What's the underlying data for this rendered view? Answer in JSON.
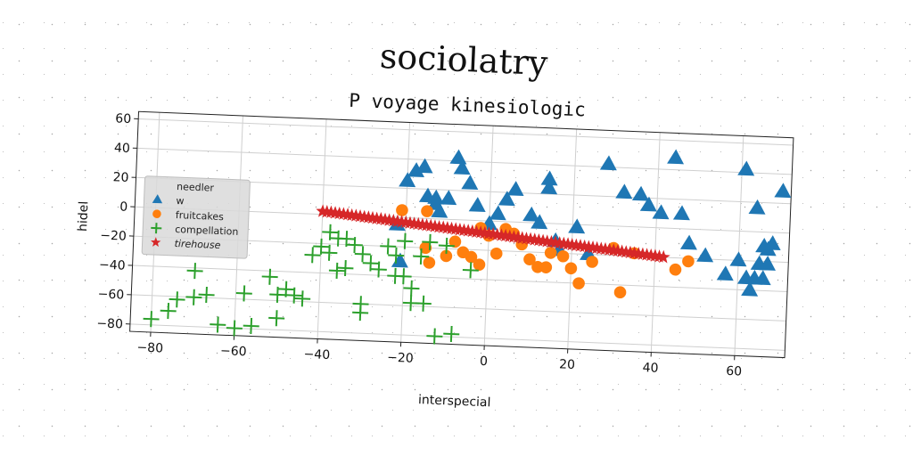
{
  "title": "sociolatry",
  "chart_data": {
    "type": "scatter",
    "title": "P voyage kinesiologic",
    "xlabel": "interspecial",
    "ylabel": "hidel",
    "xlim": [
      -85,
      72
    ],
    "ylim": [
      -85,
      65
    ],
    "xticks": [
      -80,
      -60,
      -40,
      -20,
      0,
      20,
      40,
      60
    ],
    "yticks": [
      60,
      40,
      20,
      0,
      -20,
      -40,
      -60,
      -80
    ],
    "grid": true,
    "legend": {
      "title": "needler",
      "position": "center-left"
    },
    "series": [
      {
        "name": "w",
        "marker": "triangle",
        "color": "#1f77b4",
        "points": [
          [
            -20,
            25
          ],
          [
            -18,
            32
          ],
          [
            -16,
            35
          ],
          [
            -15,
            15
          ],
          [
            -13,
            14
          ],
          [
            -13,
            10
          ],
          [
            -12,
            5
          ],
          [
            -10,
            14
          ],
          [
            -8,
            42
          ],
          [
            -7,
            35
          ],
          [
            -5,
            25
          ],
          [
            -3,
            10
          ],
          [
            0,
            -2
          ],
          [
            2,
            5
          ],
          [
            4,
            15
          ],
          [
            6,
            22
          ],
          [
            10,
            5
          ],
          [
            12,
            0
          ],
          [
            14,
            24
          ],
          [
            14,
            30
          ],
          [
            16,
            -12
          ],
          [
            17,
            -18
          ],
          [
            21,
            -2
          ],
          [
            24,
            -20
          ],
          [
            28,
            42
          ],
          [
            32,
            23
          ],
          [
            36,
            22
          ],
          [
            38,
            15
          ],
          [
            41,
            10
          ],
          [
            44,
            48
          ],
          [
            46,
            10
          ],
          [
            48,
            -10
          ],
          [
            52,
            -18
          ],
          [
            57,
            -30
          ],
          [
            60,
            -20
          ],
          [
            61,
            42
          ],
          [
            62,
            -32
          ],
          [
            63,
            -40
          ],
          [
            64,
            -32
          ],
          [
            64,
            16
          ],
          [
            65,
            -22
          ],
          [
            66,
            -10
          ],
          [
            66,
            -32
          ],
          [
            67,
            -22
          ],
          [
            67,
            -12
          ],
          [
            68,
            -8
          ],
          [
            70,
            28
          ],
          [
            -21,
            -30
          ],
          [
            -22,
            -5
          ]
        ]
      },
      {
        "name": "fruitcakes",
        "marker": "circle",
        "color": "#ff7f0e",
        "points": [
          [
            -21,
            5
          ],
          [
            -15,
            5
          ],
          [
            -15,
            -20
          ],
          [
            -14,
            -30
          ],
          [
            -10,
            -25
          ],
          [
            -8,
            -15
          ],
          [
            -6,
            -22
          ],
          [
            -4,
            -25
          ],
          [
            -2,
            -30
          ],
          [
            0,
            -10
          ],
          [
            2,
            -22
          ],
          [
            4,
            -5
          ],
          [
            6,
            -8
          ],
          [
            8,
            -15
          ],
          [
            10,
            -25
          ],
          [
            12,
            -30
          ],
          [
            14,
            -30
          ],
          [
            15,
            -20
          ],
          [
            18,
            -22
          ],
          [
            20,
            -30
          ],
          [
            22,
            -40
          ],
          [
            25,
            -25
          ],
          [
            30,
            -15
          ],
          [
            32,
            -45
          ],
          [
            35,
            -18
          ],
          [
            45,
            -28
          ],
          [
            48,
            -22
          ],
          [
            -2,
            -5
          ]
        ]
      },
      {
        "name": "compellation",
        "marker": "plus",
        "color": "#2ca02c",
        "points": [
          [
            -80,
            -76
          ],
          [
            -76,
            -70
          ],
          [
            -74,
            -62
          ],
          [
            -70,
            -42
          ],
          [
            -70,
            -60
          ],
          [
            -67,
            -58
          ],
          [
            -64,
            -78
          ],
          [
            -60,
            -80
          ],
          [
            -58,
            -56
          ],
          [
            -56,
            -78
          ],
          [
            -52,
            -44
          ],
          [
            -50,
            -72
          ],
          [
            -50,
            -56
          ],
          [
            -48,
            -52
          ],
          [
            -46,
            -56
          ],
          [
            -44,
            -58
          ],
          [
            -42,
            -28
          ],
          [
            -40,
            -22
          ],
          [
            -38,
            -26
          ],
          [
            -38,
            -12
          ],
          [
            -36,
            -16
          ],
          [
            -36,
            -38
          ],
          [
            -34,
            -36
          ],
          [
            -34,
            -16
          ],
          [
            -32,
            -20
          ],
          [
            -30,
            -60
          ],
          [
            -30,
            -26
          ],
          [
            -30,
            -66
          ],
          [
            -28,
            -32
          ],
          [
            -26,
            -36
          ],
          [
            -24,
            -20
          ],
          [
            -22,
            -26
          ],
          [
            -22,
            -40
          ],
          [
            -20,
            -40
          ],
          [
            -20,
            -16
          ],
          [
            -18,
            -48
          ],
          [
            -18,
            -58
          ],
          [
            -16,
            -26
          ],
          [
            -15,
            -58
          ],
          [
            -14,
            -16
          ],
          [
            -12,
            -80
          ],
          [
            -10,
            -18
          ],
          [
            -8,
            -78
          ],
          [
            -4,
            -34
          ]
        ]
      },
      {
        "name": "tirehouse",
        "marker": "star",
        "color": "#d62728",
        "points": [
          [
            -40,
            2.0
          ],
          [
            -39,
            1.7
          ],
          [
            -38,
            1.5
          ],
          [
            -37,
            1.2
          ],
          [
            -36,
            0.9
          ],
          [
            -35,
            0.7
          ],
          [
            -34,
            0.4
          ],
          [
            -33,
            0.1
          ],
          [
            -32,
            -0.1
          ],
          [
            -31,
            -0.4
          ],
          [
            -30,
            -0.7
          ],
          [
            -29,
            -0.9
          ],
          [
            -28,
            -1.2
          ],
          [
            -27,
            -1.5
          ],
          [
            -26,
            -1.7
          ],
          [
            -25,
            -2.0
          ],
          [
            -24,
            -2.3
          ],
          [
            -23,
            -2.5
          ],
          [
            -22,
            -2.8
          ],
          [
            -21,
            -3.1
          ],
          [
            -20,
            -3.3
          ],
          [
            -19,
            -3.6
          ],
          [
            -18,
            -3.9
          ],
          [
            -17,
            -4.1
          ],
          [
            -16,
            -4.4
          ],
          [
            -15,
            -4.7
          ],
          [
            -14,
            -4.9
          ],
          [
            -13,
            -5.2
          ],
          [
            -12,
            -5.5
          ],
          [
            -11,
            -5.7
          ],
          [
            -10,
            -6.0
          ],
          [
            -9,
            -6.3
          ],
          [
            -8,
            -6.5
          ],
          [
            -7,
            -6.8
          ],
          [
            -6,
            -7.1
          ],
          [
            -5,
            -7.3
          ],
          [
            -4,
            -7.6
          ],
          [
            -3,
            -7.9
          ],
          [
            -2,
            -8.1
          ],
          [
            -1,
            -8.4
          ],
          [
            0,
            -8.7
          ],
          [
            1,
            -8.9
          ],
          [
            2,
            -9.2
          ],
          [
            3,
            -9.5
          ],
          [
            4,
            -9.7
          ],
          [
            5,
            -10.0
          ],
          [
            6,
            -10.3
          ],
          [
            7,
            -10.5
          ],
          [
            8,
            -10.8
          ],
          [
            9,
            -11.1
          ],
          [
            10,
            -11.3
          ],
          [
            11,
            -11.6
          ],
          [
            12,
            -11.9
          ],
          [
            13,
            -12.1
          ],
          [
            14,
            -12.4
          ],
          [
            15,
            -12.7
          ],
          [
            16,
            -12.9
          ],
          [
            17,
            -13.2
          ],
          [
            18,
            -13.5
          ],
          [
            19,
            -13.7
          ],
          [
            20,
            -14.0
          ],
          [
            21,
            -14.3
          ],
          [
            22,
            -14.5
          ],
          [
            23,
            -14.8
          ],
          [
            24,
            -15.1
          ],
          [
            25,
            -15.3
          ],
          [
            26,
            -15.6
          ],
          [
            27,
            -15.9
          ],
          [
            28,
            -16.1
          ],
          [
            29,
            -16.4
          ],
          [
            30,
            -16.7
          ],
          [
            31,
            -16.9
          ],
          [
            32,
            -17.2
          ],
          [
            33,
            -17.5
          ],
          [
            34,
            -17.7
          ],
          [
            35,
            -18.0
          ],
          [
            36,
            -18.3
          ],
          [
            37,
            -18.5
          ],
          [
            38,
            -18.8
          ],
          [
            39,
            -19.1
          ],
          [
            40,
            -19.3
          ],
          [
            41,
            -19.6
          ],
          [
            42,
            -19.9
          ]
        ]
      }
    ]
  }
}
